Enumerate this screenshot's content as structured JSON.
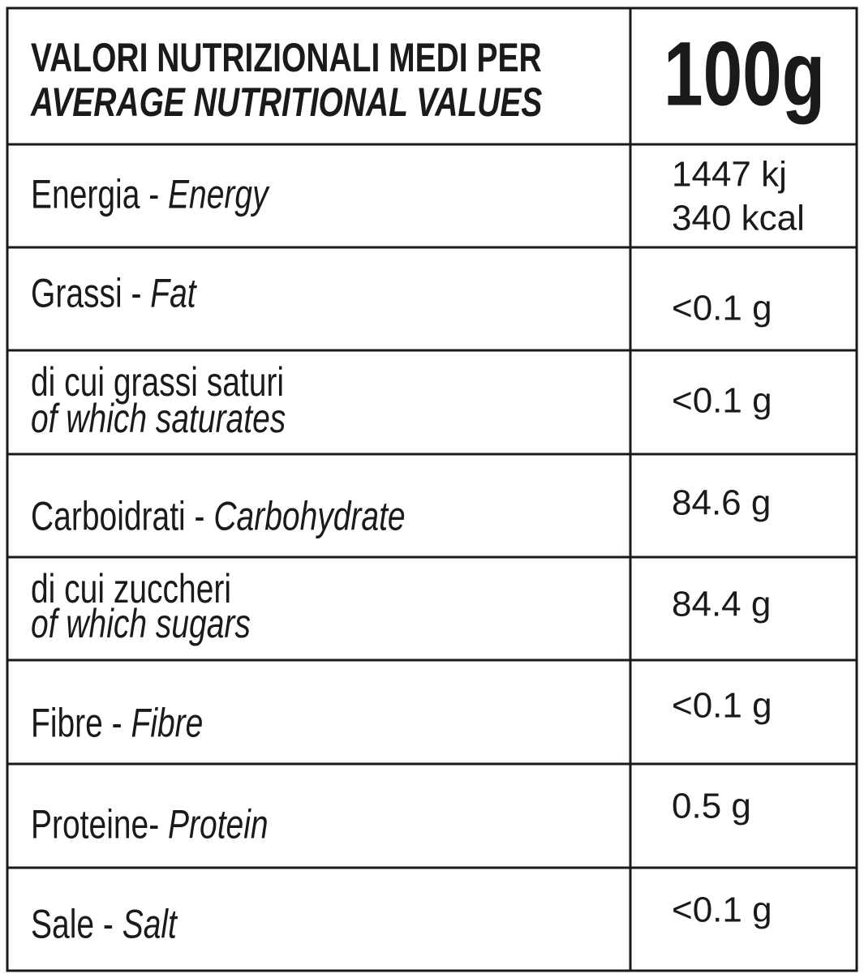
{
  "header": {
    "title": "VALORI NUTRIZIONALI MEDI PER",
    "subtitle": "AVERAGE NUTRITIONAL VALUES",
    "amount": "100g"
  },
  "rows": [
    {
      "label": "Energia - ",
      "label_en": "Energy",
      "value": [
        "1447 kj",
        "340 kcal"
      ]
    },
    {
      "label": "Grassi - ",
      "label_en": "Fat",
      "value": [
        "<0.1 g"
      ]
    },
    {
      "label": "di cui grassi saturi",
      "label_en": "of which saturates",
      "value": [
        "<0.1 g"
      ]
    },
    {
      "label": "Carboidrati - ",
      "label_en": "Carbohydrate",
      "value": [
        "84.6 g"
      ]
    },
    {
      "label": "di cui zuccheri",
      "label_en": "of which sugars",
      "value": [
        "84.4 g"
      ]
    },
    {
      "label": "Fibre - ",
      "label_en": "Fibre",
      "value": [
        "<0.1 g"
      ]
    },
    {
      "label": "Proteine- ",
      "label_en": "Protein",
      "value": [
        "0.5 g"
      ]
    },
    {
      "label": "Sale - ",
      "label_en": "Salt",
      "value": [
        "<0.1 g"
      ]
    }
  ]
}
